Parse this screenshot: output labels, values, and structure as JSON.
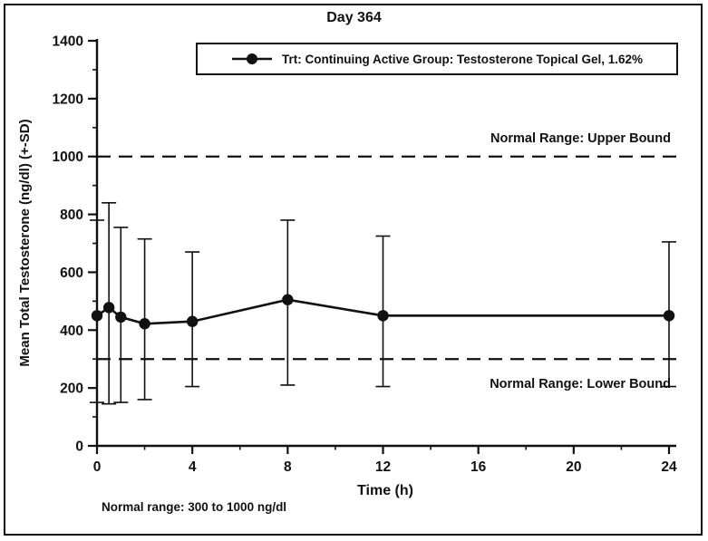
{
  "chart_data": {
    "type": "line",
    "title": "Day 364",
    "legend": {
      "label": "Trt: Continuing Active Group: Testosterone Topical Gel, 1.62%"
    },
    "xlabel": "Time (h)",
    "ylabel": "Mean Total Testosterone (ng/dl) (+-SD)",
    "footnote": "Normal range: 300 to 1000 ng/dl",
    "annotations": {
      "upper": "Normal Range: Upper Bound",
      "lower": "Normal Range: Lower Bound"
    },
    "normal_range": {
      "lower": 300,
      "upper": 1000
    },
    "xlim": [
      0,
      24
    ],
    "ylim": [
      0,
      1400
    ],
    "xticks": [
      0,
      4,
      8,
      12,
      16,
      20,
      24
    ],
    "yticks": [
      0,
      200,
      400,
      600,
      800,
      1000,
      1200,
      1400
    ],
    "grid": false,
    "legend_position": "top-center",
    "series": [
      {
        "name": "Trt: Continuing Active Group: Testosterone Topical Gel, 1.62%",
        "color": "#111111",
        "points": [
          {
            "x": 0,
            "mean": 450,
            "sd_low": 150,
            "sd_high": 780
          },
          {
            "x": 0.5,
            "mean": 478,
            "sd_low": 145,
            "sd_high": 840
          },
          {
            "x": 1,
            "mean": 445,
            "sd_low": 150,
            "sd_high": 755
          },
          {
            "x": 2,
            "mean": 422,
            "sd_low": 160,
            "sd_high": 715
          },
          {
            "x": 4,
            "mean": 430,
            "sd_low": 205,
            "sd_high": 670
          },
          {
            "x": 8,
            "mean": 505,
            "sd_low": 210,
            "sd_high": 780
          },
          {
            "x": 12,
            "mean": 450,
            "sd_low": 205,
            "sd_high": 725
          },
          {
            "x": 24,
            "mean": 450,
            "sd_low": 205,
            "sd_high": 705
          }
        ]
      }
    ]
  }
}
